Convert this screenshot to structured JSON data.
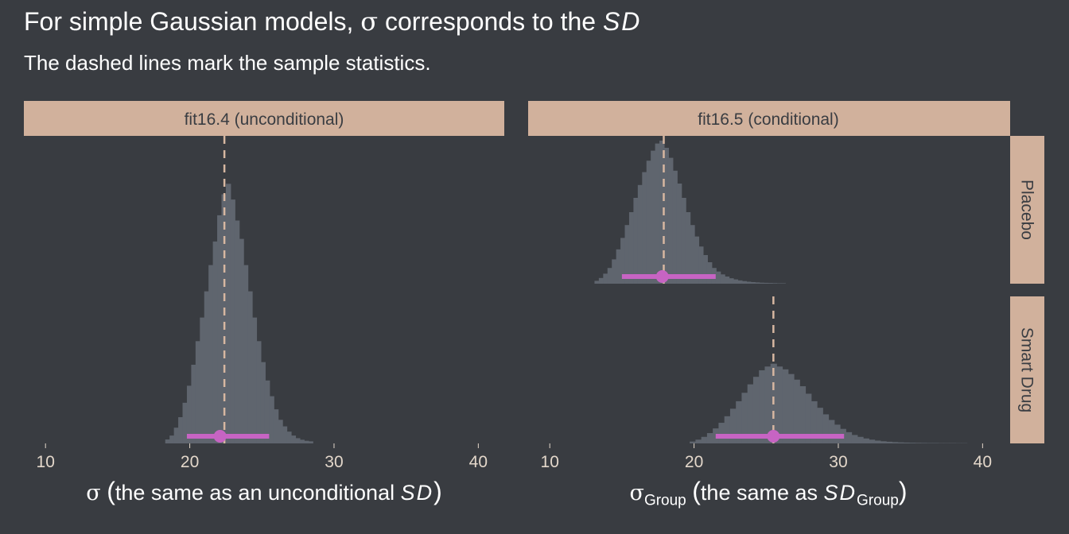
{
  "title": {
    "prefix": "For simple Gaussian models, ",
    "symbol": "σ",
    "middle": " corresponds to the ",
    "emph": "SD"
  },
  "subtitle": "The dashed lines mark the sample statistics.",
  "colors": {
    "background": "#393c41",
    "panel": "#e4d6ca",
    "strip": "#d1b19c",
    "bars": "#5f656e",
    "interval": "#c764c3",
    "reference_line": "#d7b7a1",
    "tick_text": "#e3d7ca"
  },
  "chart_data": [
    {
      "type": "histogram",
      "panel": "fit16.4 (unconditional)",
      "x_axis": {
        "symbol": "σ",
        "label": "the same as an unconditional ",
        "emph": "SD",
        "ticks": [
          10,
          20,
          30,
          40
        ],
        "range": [
          8.5,
          41.8
        ]
      },
      "bin_width": 0.33,
      "bins": [
        {
          "x": 18.3,
          "h": 0.015
        },
        {
          "x": 18.6,
          "h": 0.03
        },
        {
          "x": 18.9,
          "h": 0.06
        },
        {
          "x": 19.2,
          "h": 0.1
        },
        {
          "x": 19.5,
          "h": 0.155
        },
        {
          "x": 19.8,
          "h": 0.22
        },
        {
          "x": 20.1,
          "h": 0.3
        },
        {
          "x": 20.4,
          "h": 0.39
        },
        {
          "x": 20.7,
          "h": 0.48
        },
        {
          "x": 21.0,
          "h": 0.58
        },
        {
          "x": 21.3,
          "h": 0.68
        },
        {
          "x": 21.6,
          "h": 0.77
        },
        {
          "x": 21.9,
          "h": 0.87
        },
        {
          "x": 22.2,
          "h": 0.95
        },
        {
          "x": 22.5,
          "h": 0.99
        },
        {
          "x": 22.8,
          "h": 0.93
        },
        {
          "x": 23.1,
          "h": 0.85
        },
        {
          "x": 23.4,
          "h": 0.78
        },
        {
          "x": 23.7,
          "h": 0.68
        },
        {
          "x": 24.0,
          "h": 0.58
        },
        {
          "x": 24.3,
          "h": 0.48
        },
        {
          "x": 24.6,
          "h": 0.39
        },
        {
          "x": 24.9,
          "h": 0.31
        },
        {
          "x": 25.2,
          "h": 0.24
        },
        {
          "x": 25.5,
          "h": 0.18
        },
        {
          "x": 25.8,
          "h": 0.13
        },
        {
          "x": 26.1,
          "h": 0.09
        },
        {
          "x": 26.4,
          "h": 0.065
        },
        {
          "x": 26.7,
          "h": 0.045
        },
        {
          "x": 27.0,
          "h": 0.03
        },
        {
          "x": 27.3,
          "h": 0.02
        },
        {
          "x": 27.6,
          "h": 0.014
        },
        {
          "x": 27.9,
          "h": 0.01
        },
        {
          "x": 28.2,
          "h": 0.008
        }
      ],
      "sample_statistic": 22.4,
      "point_estimate": 22.1,
      "interval": [
        19.8,
        25.5
      ]
    },
    {
      "type": "histogram",
      "panel": "fit16.5 (conditional)",
      "facet": "Placebo",
      "x_axis": {
        "symbol": "σ",
        "subscript": "Group",
        "label": "the same as ",
        "emph": "SD",
        "emph_subscript": "Group",
        "ticks": [
          10,
          20,
          30,
          40
        ],
        "range": [
          8.5,
          41.8
        ]
      },
      "bin_width": 0.33,
      "bins": [
        {
          "x": 13.1,
          "h": 0.02
        },
        {
          "x": 13.4,
          "h": 0.04
        },
        {
          "x": 13.7,
          "h": 0.07
        },
        {
          "x": 14.0,
          "h": 0.11
        },
        {
          "x": 14.3,
          "h": 0.17
        },
        {
          "x": 14.6,
          "h": 0.24
        },
        {
          "x": 14.9,
          "h": 0.32
        },
        {
          "x": 15.2,
          "h": 0.41
        },
        {
          "x": 15.5,
          "h": 0.5
        },
        {
          "x": 15.8,
          "h": 0.6
        },
        {
          "x": 16.1,
          "h": 0.69
        },
        {
          "x": 16.4,
          "h": 0.78
        },
        {
          "x": 16.7,
          "h": 0.86
        },
        {
          "x": 17.0,
          "h": 0.93
        },
        {
          "x": 17.3,
          "h": 0.98
        },
        {
          "x": 17.6,
          "h": 1.0
        },
        {
          "x": 17.9,
          "h": 0.95
        },
        {
          "x": 18.2,
          "h": 0.88
        },
        {
          "x": 18.5,
          "h": 0.79
        },
        {
          "x": 18.8,
          "h": 0.7
        },
        {
          "x": 19.1,
          "h": 0.6
        },
        {
          "x": 19.4,
          "h": 0.5
        },
        {
          "x": 19.7,
          "h": 0.41
        },
        {
          "x": 20.0,
          "h": 0.33
        },
        {
          "x": 20.3,
          "h": 0.26
        },
        {
          "x": 20.6,
          "h": 0.2
        },
        {
          "x": 20.9,
          "h": 0.15
        },
        {
          "x": 21.2,
          "h": 0.11
        },
        {
          "x": 21.5,
          "h": 0.085
        },
        {
          "x": 21.8,
          "h": 0.065
        },
        {
          "x": 22.1,
          "h": 0.05
        },
        {
          "x": 22.4,
          "h": 0.038
        },
        {
          "x": 22.7,
          "h": 0.03
        },
        {
          "x": 23.0,
          "h": 0.023
        },
        {
          "x": 23.3,
          "h": 0.018
        },
        {
          "x": 23.6,
          "h": 0.014
        },
        {
          "x": 23.9,
          "h": 0.011
        },
        {
          "x": 24.2,
          "h": 0.009
        },
        {
          "x": 24.5,
          "h": 0.007
        },
        {
          "x": 24.8,
          "h": 0.006
        },
        {
          "x": 25.1,
          "h": 0.005
        },
        {
          "x": 25.4,
          "h": 0.004
        },
        {
          "x": 25.7,
          "h": 0.003
        },
        {
          "x": 26.0,
          "h": 0.003
        }
      ],
      "sample_statistic": 17.9,
      "point_estimate": 17.8,
      "interval": [
        15.0,
        21.5
      ]
    },
    {
      "type": "histogram",
      "panel": "fit16.5 (conditional)",
      "facet": "Smart Drug",
      "bin_width": 0.42,
      "bins": [
        {
          "x": 19.7,
          "h": 0.02
        },
        {
          "x": 20.1,
          "h": 0.04
        },
        {
          "x": 20.5,
          "h": 0.07
        },
        {
          "x": 20.9,
          "h": 0.11
        },
        {
          "x": 21.3,
          "h": 0.16
        },
        {
          "x": 21.7,
          "h": 0.22
        },
        {
          "x": 22.1,
          "h": 0.29
        },
        {
          "x": 22.5,
          "h": 0.37
        },
        {
          "x": 22.9,
          "h": 0.45
        },
        {
          "x": 23.3,
          "h": 0.54
        },
        {
          "x": 23.7,
          "h": 0.63
        },
        {
          "x": 24.1,
          "h": 0.71
        },
        {
          "x": 24.5,
          "h": 0.78
        },
        {
          "x": 24.9,
          "h": 0.82
        },
        {
          "x": 25.3,
          "h": 0.85
        },
        {
          "x": 25.7,
          "h": 0.82
        },
        {
          "x": 26.1,
          "h": 0.79
        },
        {
          "x": 26.5,
          "h": 0.74
        },
        {
          "x": 26.9,
          "h": 0.68
        },
        {
          "x": 27.3,
          "h": 0.61
        },
        {
          "x": 27.7,
          "h": 0.53
        },
        {
          "x": 28.1,
          "h": 0.45
        },
        {
          "x": 28.5,
          "h": 0.38
        },
        {
          "x": 28.9,
          "h": 0.31
        },
        {
          "x": 29.3,
          "h": 0.25
        },
        {
          "x": 29.7,
          "h": 0.2
        },
        {
          "x": 30.1,
          "h": 0.155
        },
        {
          "x": 30.5,
          "h": 0.12
        },
        {
          "x": 30.9,
          "h": 0.09
        },
        {
          "x": 31.3,
          "h": 0.07
        },
        {
          "x": 31.7,
          "h": 0.053
        },
        {
          "x": 32.1,
          "h": 0.04
        },
        {
          "x": 32.5,
          "h": 0.03
        },
        {
          "x": 32.9,
          "h": 0.023
        },
        {
          "x": 33.3,
          "h": 0.018
        },
        {
          "x": 33.7,
          "h": 0.014
        },
        {
          "x": 34.1,
          "h": 0.011
        },
        {
          "x": 34.5,
          "h": 0.009
        },
        {
          "x": 34.9,
          "h": 0.007
        },
        {
          "x": 35.3,
          "h": 0.006
        },
        {
          "x": 35.7,
          "h": 0.005
        },
        {
          "x": 36.1,
          "h": 0.004
        },
        {
          "x": 36.5,
          "h": 0.004
        },
        {
          "x": 36.9,
          "h": 0.003
        },
        {
          "x": 37.3,
          "h": 0.003
        },
        {
          "x": 37.7,
          "h": 0.003
        },
        {
          "x": 38.1,
          "h": 0.002
        },
        {
          "x": 38.5,
          "h": 0.002
        }
      ],
      "sample_statistic": 25.5,
      "point_estimate": 25.5,
      "interval": [
        21.5,
        30.4
      ]
    }
  ]
}
